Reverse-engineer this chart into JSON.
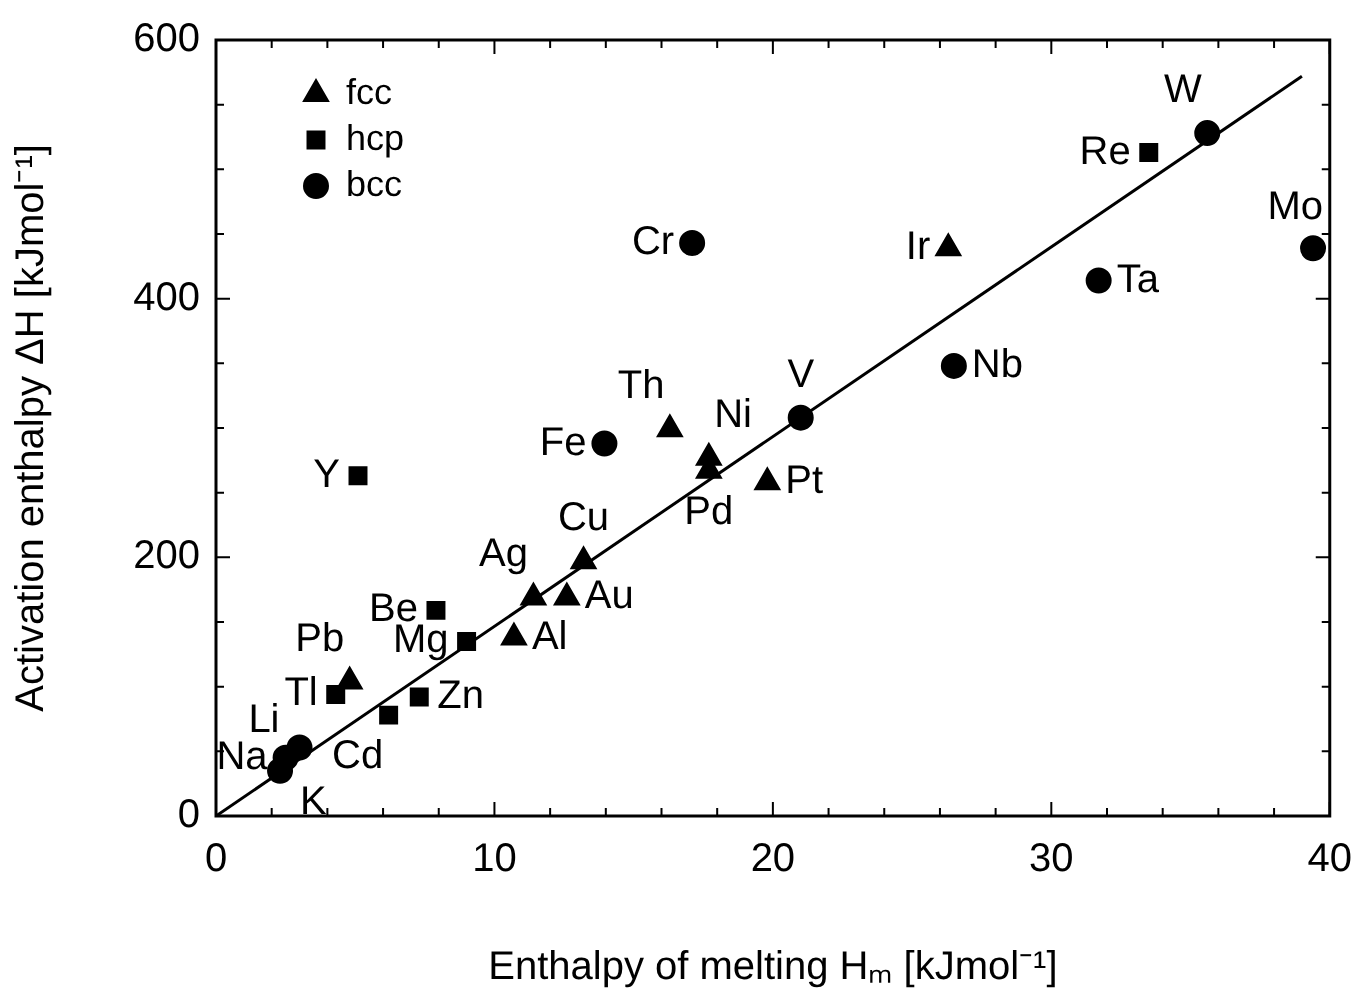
{
  "chart_data": {
    "type": "scatter",
    "xlabel": "Enthalpy of melting Hₘ [kJmol⁻¹]",
    "ylabel": "Activation enthalpy ΔH [kJmol⁻¹]",
    "xlim": [
      0,
      40
    ],
    "ylim": [
      0,
      600
    ],
    "xticks": [
      0,
      {
        "value": 2,
        "label": null
      },
      {
        "value": 4,
        "label": null
      },
      {
        "value": 6,
        "label": null
      },
      {
        "value": 8,
        "label": null
      },
      10,
      {
        "value": 12,
        "label": null
      },
      {
        "value": 14,
        "label": null
      },
      {
        "value": 16,
        "label": null
      },
      {
        "value": 18,
        "label": null
      },
      20,
      {
        "value": 22,
        "label": null
      },
      {
        "value": 24,
        "label": null
      },
      {
        "value": 26,
        "label": null
      },
      {
        "value": 28,
        "label": null
      },
      30,
      {
        "value": 32,
        "label": null
      },
      {
        "value": 34,
        "label": null
      },
      {
        "value": 36,
        "label": null
      },
      {
        "value": 38,
        "label": null
      },
      40
    ],
    "yticks": [
      0,
      {
        "value": 50,
        "label": null
      },
      {
        "value": 100,
        "label": null
      },
      {
        "value": 150,
        "label": null
      },
      200,
      {
        "value": 250,
        "label": null
      },
      {
        "value": 300,
        "label": null
      },
      {
        "value": 350,
        "label": null
      },
      400,
      {
        "value": 450,
        "label": null
      },
      {
        "value": 500,
        "label": null
      },
      {
        "value": 550,
        "label": null
      },
      600
    ],
    "grid": false,
    "legend": "top left",
    "series": [
      {
        "name": "fcc",
        "color": "#000000",
        "marker": "triangle",
        "x": [
          4.8,
          10.7,
          11.4,
          12.6,
          13.2,
          16.3,
          17.7,
          17.7,
          19.8,
          26.3
        ],
        "values": [
          104,
          138,
          169,
          169,
          197,
          299,
          277,
          267,
          258,
          439
        ]
      },
      {
        "name": "hcp",
        "color": "#000000",
        "marker": "square",
        "x": [
          4.3,
          6.2,
          7.3,
          7.9,
          9.0,
          5.1,
          33.5
        ],
        "values": [
          94,
          78,
          92,
          159,
          135,
          263,
          513
        ]
      },
      {
        "name": "bcc",
        "color": "#000000",
        "marker": "circle",
        "x": [
          3.0,
          2.5,
          2.3,
          13.95,
          17.1,
          21.0,
          26.5,
          31.7,
          35.6,
          39.4
        ],
        "values": [
          53,
          45,
          35,
          288,
          443,
          308,
          348,
          414,
          528,
          439
        ]
      },
      {
        "type": "line",
        "color": "#000000",
        "marker": "none",
        "line_style": "solid",
        "x": [
          0,
          39
        ],
        "values": [
          0,
          572
        ]
      }
    ],
    "annotations": [
      {
        "text": "Pb",
        "x": 4.8,
        "y": 104
      },
      {
        "text": "Al",
        "x": 10.7,
        "y": 138
      },
      {
        "text": "Ag",
        "x": 11.4,
        "y": 169
      },
      {
        "text": "Au",
        "x": 12.6,
        "y": 169
      },
      {
        "text": "Cu",
        "x": 13.2,
        "y": 197
      },
      {
        "text": "Th",
        "x": 16.3,
        "y": 299
      },
      {
        "text": "Ni",
        "x": 17.7,
        "y": 277
      },
      {
        "text": "Pd",
        "x": 17.7,
        "y": 267
      },
      {
        "text": "Pt",
        "x": 19.8,
        "y": 258
      },
      {
        "text": "Ir",
        "x": 26.3,
        "y": 439
      },
      {
        "text": "Tl",
        "x": 4.3,
        "y": 94
      },
      {
        "text": "Cd",
        "x": 6.2,
        "y": 78
      },
      {
        "text": "Zn",
        "x": 7.3,
        "y": 92
      },
      {
        "text": "Be",
        "x": 7.9,
        "y": 159
      },
      {
        "text": "Mg",
        "x": 9.0,
        "y": 135
      },
      {
        "text": "Y",
        "x": 5.1,
        "y": 263
      },
      {
        "text": "Re",
        "x": 33.5,
        "y": 513
      },
      {
        "text": "Li",
        "x": 3.0,
        "y": 53
      },
      {
        "text": "Na",
        "x": 2.5,
        "y": 45
      },
      {
        "text": "K",
        "x": 2.3,
        "y": 35
      },
      {
        "text": "Fe",
        "x": 13.95,
        "y": 288
      },
      {
        "text": "Cr",
        "x": 17.1,
        "y": 443
      },
      {
        "text": "V",
        "x": 21.0,
        "y": 308
      },
      {
        "text": "Nb",
        "x": 26.5,
        "y": 348
      },
      {
        "text": "Ta",
        "x": 31.7,
        "y": 414
      },
      {
        "text": "W",
        "x": 35.6,
        "y": 528
      },
      {
        "text": "Mo",
        "x": 39.4,
        "y": 439
      }
    ]
  }
}
